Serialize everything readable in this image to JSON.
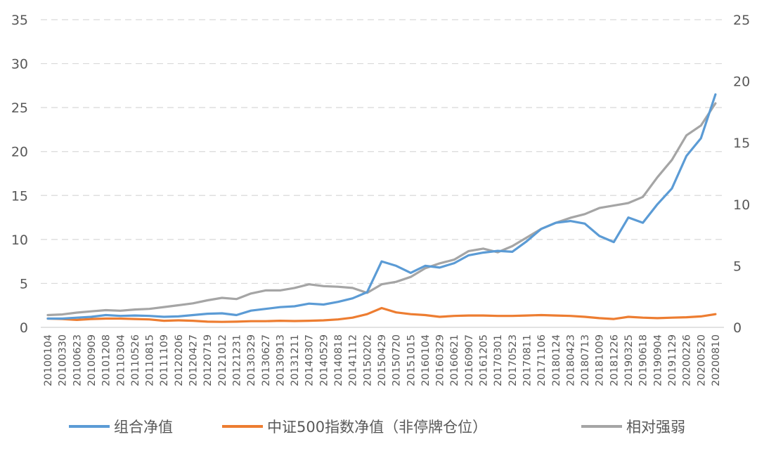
{
  "chart_data": {
    "type": "line",
    "title": "",
    "xlabel": "",
    "ylabel": "",
    "ylim": [
      0,
      35
    ],
    "y2lim": [
      0,
      25
    ],
    "y_ticks": [
      "0",
      "5",
      "10",
      "15",
      "20",
      "25",
      "30",
      "35"
    ],
    "y2_ticks": [
      "0",
      "5",
      "10",
      "15",
      "20",
      "25"
    ],
    "grid": true,
    "legend_position": "bottom",
    "categories": [
      "20100104",
      "20100330",
      "20100623",
      "20100909",
      "20101208",
      "20110304",
      "20110526",
      "20110815",
      "20111109",
      "20120206",
      "20120427",
      "20120719",
      "20121012",
      "20121231",
      "20130329",
      "20130627",
      "20130913",
      "20131211",
      "20140307",
      "20140529",
      "20140818",
      "20141112",
      "20150202",
      "20150429",
      "20150720",
      "20151015",
      "20160104",
      "20160329",
      "20160621",
      "20160907",
      "20161205",
      "20170301",
      "20170523",
      "20170811",
      "20171106",
      "20180124",
      "20180423",
      "20180713",
      "20181009",
      "20181226",
      "20190325",
      "20190618",
      "20190904",
      "20191129",
      "20200226",
      "20200520",
      "20200810"
    ],
    "series": [
      {
        "name": "组合净值",
        "axis": "left",
        "color": "#5b9bd5",
        "values": [
          1.0,
          1.0,
          1.1,
          1.2,
          1.4,
          1.3,
          1.35,
          1.3,
          1.2,
          1.25,
          1.4,
          1.55,
          1.6,
          1.4,
          1.9,
          2.1,
          2.3,
          2.4,
          2.7,
          2.6,
          2.9,
          3.3,
          4.0,
          7.5,
          7.0,
          6.2,
          7.0,
          6.8,
          7.3,
          8.2,
          8.5,
          8.7,
          8.6,
          9.8,
          11.2,
          11.9,
          12.1,
          11.8,
          10.4,
          9.7,
          12.5,
          11.9,
          14.0,
          15.8,
          19.5,
          21.5,
          26.5
        ]
      },
      {
        "name": "中证500指数净值（非停牌仓位）",
        "axis": "left",
        "color": "#ed7d31",
        "values": [
          1.0,
          0.95,
          0.85,
          0.95,
          1.0,
          1.0,
          0.95,
          0.9,
          0.75,
          0.8,
          0.75,
          0.65,
          0.62,
          0.65,
          0.7,
          0.7,
          0.75,
          0.72,
          0.75,
          0.8,
          0.9,
          1.1,
          1.5,
          2.2,
          1.7,
          1.5,
          1.4,
          1.2,
          1.3,
          1.35,
          1.35,
          1.3,
          1.3,
          1.35,
          1.4,
          1.35,
          1.3,
          1.2,
          1.05,
          0.95,
          1.2,
          1.1,
          1.05,
          1.1,
          1.15,
          1.25,
          1.5
        ]
      },
      {
        "name": "相对强弱",
        "axis": "right",
        "color": "#a5a5a5",
        "values": [
          1.0,
          1.05,
          1.2,
          1.3,
          1.4,
          1.35,
          1.45,
          1.5,
          1.65,
          1.8,
          1.95,
          2.2,
          2.4,
          2.3,
          2.75,
          3.0,
          3.0,
          3.2,
          3.5,
          3.35,
          3.3,
          3.2,
          2.8,
          3.5,
          3.7,
          4.1,
          4.8,
          5.2,
          5.5,
          6.2,
          6.4,
          6.1,
          6.6,
          7.3,
          8.0,
          8.5,
          8.9,
          9.2,
          9.7,
          9.9,
          10.1,
          10.6,
          12.2,
          13.6,
          15.6,
          16.4,
          18.2
        ]
      }
    ]
  }
}
